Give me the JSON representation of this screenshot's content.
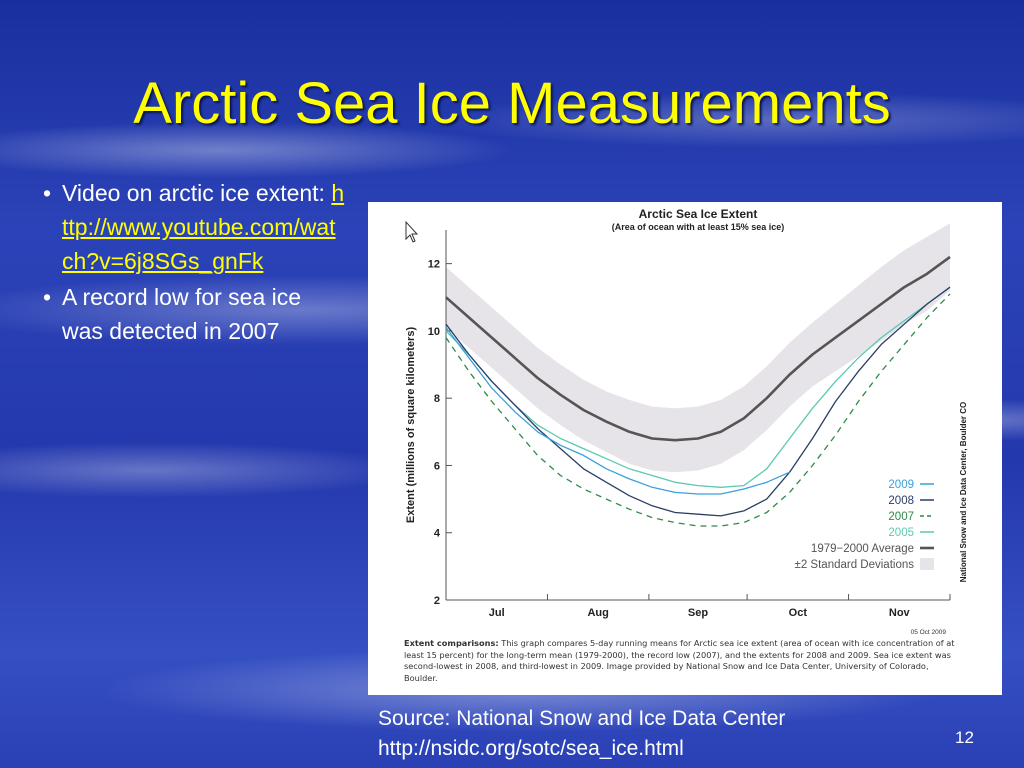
{
  "slide": {
    "title": "Arctic Sea Ice Measurements",
    "bullets": [
      {
        "text": "Video on arctic ice extent:",
        "link": "http://www.youtube.com/watch?v=6j8SGs_gnFk"
      },
      {
        "text": "A record low for sea ice was detected in 2007"
      }
    ],
    "source_line1": "Source: National Snow and Ice Data Center",
    "source_line2": "http://nsidc.org/sotc/sea_ice.html",
    "page_number": "12",
    "title_color": "#ffff00",
    "link_color": "#ffff00"
  },
  "chart_data": {
    "type": "line",
    "title": "Arctic Sea Ice Extent",
    "subtitle": "(Area of ocean with at least 15% sea ice)",
    "ylabel": "Extent (millions of square kilometers)",
    "xlabel": "",
    "ylim": [
      2,
      13
    ],
    "yticks": [
      2,
      4,
      6,
      8,
      10,
      12
    ],
    "month_labels": [
      "Jul",
      "Aug",
      "Sep",
      "Oct",
      "Nov"
    ],
    "date_stamp": "05 Oct 2009",
    "side_credit": "National Snow and Ice Data Center, Boulder CO",
    "grid": false,
    "legend_position": "bottom-right",
    "x_days": [
      0,
      7,
      14,
      21,
      28,
      35,
      42,
      49,
      56,
      63,
      70,
      77,
      84,
      91,
      98,
      105,
      112,
      119,
      126,
      133,
      140,
      147,
      154
    ],
    "series": [
      {
        "name": "2009",
        "color": "#3aa0dc",
        "dash": "",
        "values": [
          10.1,
          9.2,
          8.3,
          7.6,
          7.0,
          6.6,
          6.3,
          5.9,
          5.6,
          5.35,
          5.2,
          5.15,
          5.15,
          5.3,
          5.5,
          5.8
        ]
      },
      {
        "name": "2008",
        "color": "#2a3e66",
        "dash": "",
        "values": [
          10.2,
          9.3,
          8.5,
          7.8,
          7.1,
          6.5,
          5.9,
          5.5,
          5.1,
          4.8,
          4.6,
          4.55,
          4.5,
          4.65,
          5.0,
          5.8,
          6.8,
          7.9,
          8.8,
          9.6,
          10.2,
          10.8,
          11.3
        ]
      },
      {
        "name": "2007",
        "color": "#2e8a4a",
        "dash": "6,5",
        "values": [
          9.8,
          8.8,
          7.9,
          7.1,
          6.3,
          5.7,
          5.3,
          5.0,
          4.7,
          4.45,
          4.3,
          4.2,
          4.2,
          4.3,
          4.6,
          5.2,
          6.0,
          6.9,
          7.9,
          8.8,
          9.6,
          10.4,
          11.1
        ]
      },
      {
        "name": "2005",
        "color": "#5cc9b0",
        "dash": "",
        "values": [
          10.0,
          9.3,
          8.5,
          7.8,
          7.2,
          6.8,
          6.5,
          6.2,
          5.9,
          5.7,
          5.5,
          5.4,
          5.35,
          5.4,
          5.9,
          6.8,
          7.7,
          8.5,
          9.2,
          9.8,
          10.3,
          10.8,
          11.3
        ]
      },
      {
        "name": "1979−2000 Average",
        "color": "#555555",
        "dash": "",
        "values": [
          11.0,
          10.4,
          9.8,
          9.2,
          8.6,
          8.1,
          7.65,
          7.3,
          7.0,
          6.8,
          6.75,
          6.8,
          7.0,
          7.4,
          8.0,
          8.7,
          9.3,
          9.8,
          10.3,
          10.8,
          11.3,
          11.7,
          12.2
        ]
      }
    ],
    "band": {
      "name": "±2 Standard Deviations",
      "color": "#e6e4e8",
      "upper": [
        11.9,
        11.3,
        10.7,
        10.1,
        9.5,
        9.0,
        8.55,
        8.2,
        7.95,
        7.75,
        7.7,
        7.75,
        7.95,
        8.35,
        8.95,
        9.65,
        10.25,
        10.8,
        11.35,
        11.9,
        12.4,
        12.8,
        13.2
      ],
      "lower": [
        10.1,
        9.5,
        8.9,
        8.3,
        7.7,
        7.2,
        6.75,
        6.4,
        6.05,
        5.85,
        5.8,
        5.85,
        6.05,
        6.45,
        7.05,
        7.75,
        8.35,
        8.8,
        9.25,
        9.7,
        10.2,
        10.6,
        11.2
      ]
    },
    "caption_label": "Extent comparisons:",
    "caption_text": "This graph compares 5-day running means for Arctic sea ice extent (area of ocean with ice concentration of at least 15 percent) for the long-term mean (1979-2000), the record low (2007), and the extents for 2008 and 2009. Sea ice extent was second-lowest in 2008, and third-lowest in 2009. Image provided by National Snow and Ice Data Center, University of Colorado, Boulder."
  }
}
